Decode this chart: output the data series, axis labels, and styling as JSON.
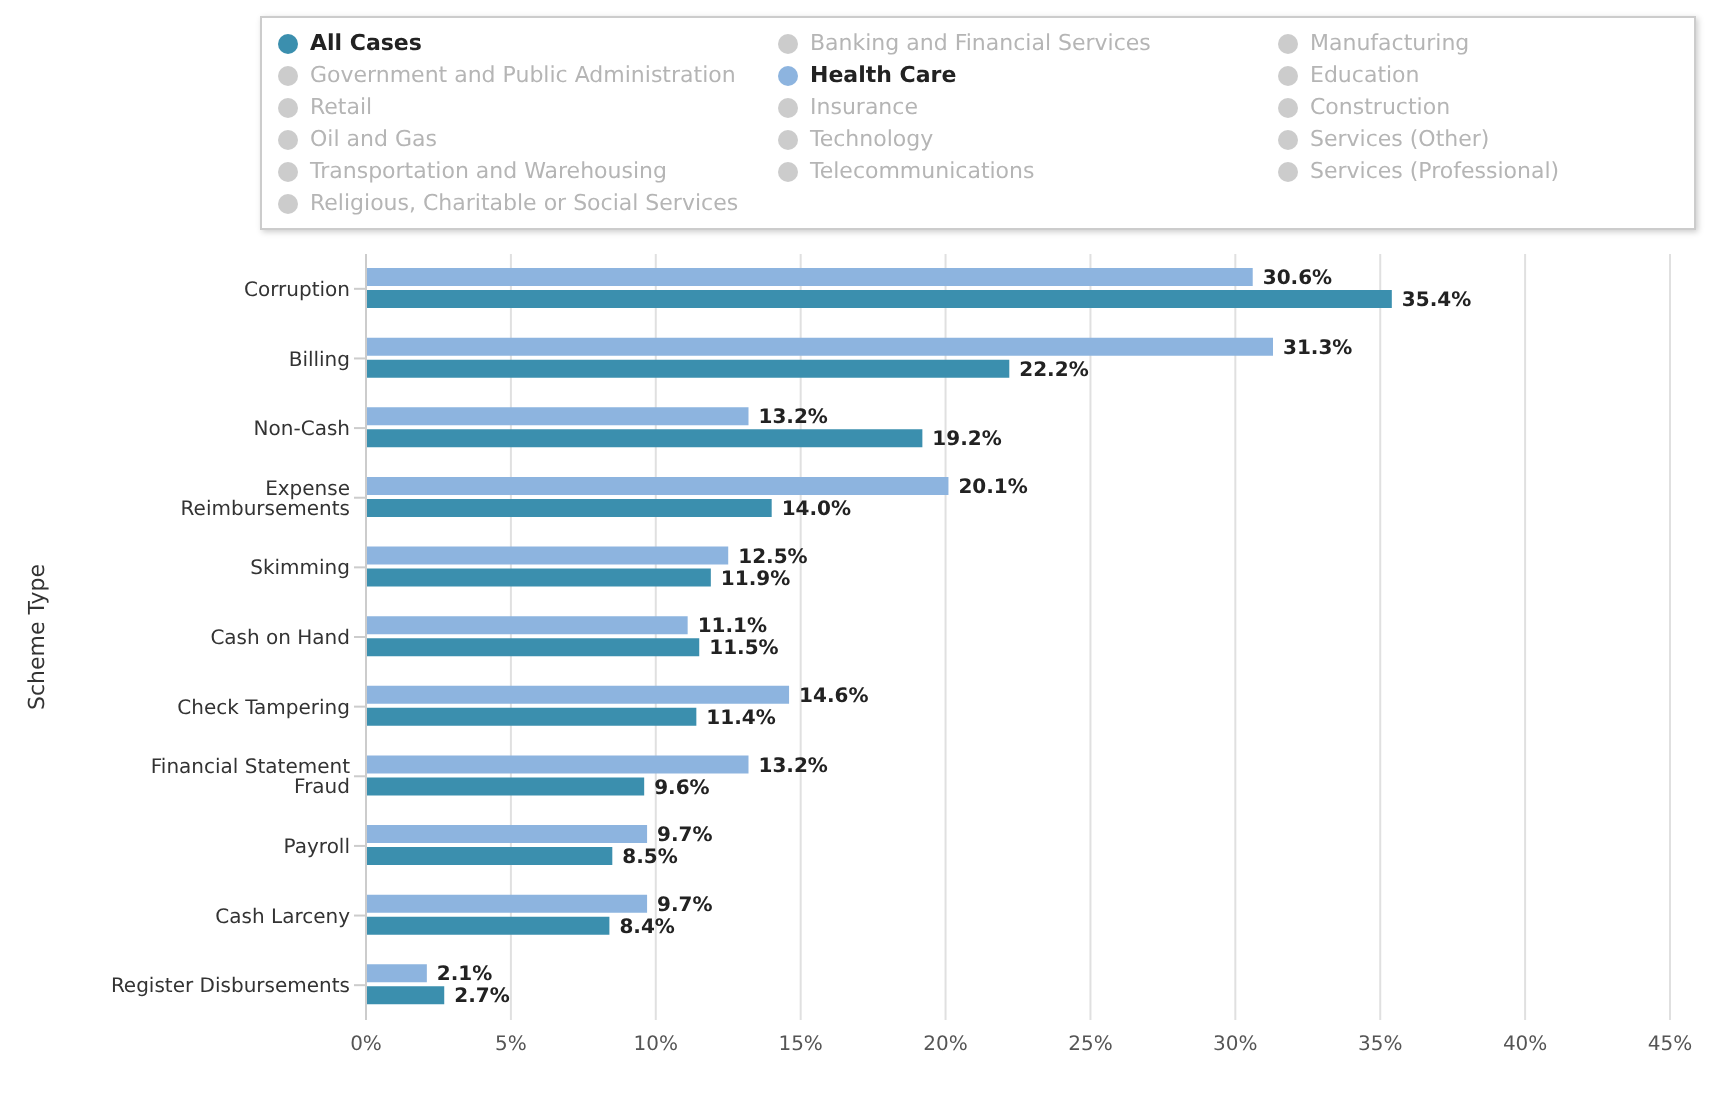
{
  "chart_data": {
    "type": "bar",
    "orientation": "horizontal",
    "ylabel": "Scheme Type",
    "legend": "top",
    "grid": "x",
    "categories": [
      "Corruption",
      "Billing",
      "Non-Cash",
      "Expense Reimbursements",
      "Skimming",
      "Cash on Hand",
      "Check Tampering",
      "Financial Statement Fraud",
      "Payroll",
      "Cash Larceny",
      "Register Disbursements"
    ],
    "xlim": [
      0,
      45
    ],
    "xticks": [
      {
        "value": 0,
        "label": "0%"
      },
      {
        "value": 5,
        "label": "5%"
      },
      {
        "value": 10,
        "label": "10%"
      },
      {
        "value": 15,
        "label": "15%"
      },
      {
        "value": 20,
        "label": "20%"
      },
      {
        "value": 25,
        "label": "25%"
      },
      {
        "value": 30,
        "label": "30%"
      },
      {
        "value": 35,
        "label": "35%"
      },
      {
        "value": 40,
        "label": "40%"
      },
      {
        "value": 45,
        "label": "45%"
      }
    ],
    "series": [
      {
        "name": "All Cases",
        "color": "#3b8fae",
        "values": [
          35.4,
          22.2,
          19.2,
          14.0,
          11.9,
          11.5,
          11.4,
          9.6,
          8.5,
          8.4,
          2.7
        ],
        "value_labels": [
          "35.4%",
          "22.2%",
          "19.2%",
          "14.0%",
          "11.9%",
          "11.5%",
          "11.4%",
          "9.6%",
          "8.5%",
          "8.4%",
          "2.7%"
        ]
      },
      {
        "name": "Banking and Financial Services",
        "color": "#cccccc",
        "values": [
          null,
          null,
          null,
          null,
          null,
          null,
          null,
          null,
          null,
          null,
          null
        ]
      },
      {
        "name": "Manufacturing",
        "color": "#cccccc",
        "values": [
          null,
          null,
          null,
          null,
          null,
          null,
          null,
          null,
          null,
          null,
          null
        ]
      },
      {
        "name": "Government and Public Administration",
        "color": "#cccccc",
        "values": [
          null,
          null,
          null,
          null,
          null,
          null,
          null,
          null,
          null,
          null,
          null
        ]
      },
      {
        "name": "Health Care",
        "color": "#8db4df",
        "values": [
          30.6,
          31.3,
          13.2,
          20.1,
          12.5,
          11.1,
          14.6,
          13.2,
          9.7,
          9.7,
          2.1
        ],
        "value_labels": [
          "30.6%",
          "31.3%",
          "13.2%",
          "20.1%",
          "12.5%",
          "11.1%",
          "14.6%",
          "13.2%",
          "9.7%",
          "9.7%",
          "2.1%"
        ]
      },
      {
        "name": "Education",
        "color": "#cccccc",
        "values": [
          null,
          null,
          null,
          null,
          null,
          null,
          null,
          null,
          null,
          null,
          null
        ]
      },
      {
        "name": "Retail",
        "color": "#cccccc",
        "values": [
          null,
          null,
          null,
          null,
          null,
          null,
          null,
          null,
          null,
          null,
          null
        ]
      },
      {
        "name": "Insurance",
        "color": "#cccccc",
        "values": [
          null,
          null,
          null,
          null,
          null,
          null,
          null,
          null,
          null,
          null,
          null
        ]
      },
      {
        "name": "Construction",
        "color": "#cccccc",
        "values": [
          null,
          null,
          null,
          null,
          null,
          null,
          null,
          null,
          null,
          null,
          null
        ]
      },
      {
        "name": "Oil and Gas",
        "color": "#cccccc",
        "values": [
          null,
          null,
          null,
          null,
          null,
          null,
          null,
          null,
          null,
          null,
          null
        ]
      },
      {
        "name": "Technology",
        "color": "#cccccc",
        "values": [
          null,
          null,
          null,
          null,
          null,
          null,
          null,
          null,
          null,
          null,
          null
        ]
      },
      {
        "name": "Services (Other)",
        "color": "#cccccc",
        "values": [
          null,
          null,
          null,
          null,
          null,
          null,
          null,
          null,
          null,
          null,
          null
        ]
      },
      {
        "name": "Transportation and Warehousing",
        "color": "#cccccc",
        "values": [
          null,
          null,
          null,
          null,
          null,
          null,
          null,
          null,
          null,
          null,
          null
        ]
      },
      {
        "name": "Telecommunications",
        "color": "#cccccc",
        "values": [
          null,
          null,
          null,
          null,
          null,
          null,
          null,
          null,
          null,
          null,
          null
        ]
      },
      {
        "name": "Services (Professional)",
        "color": "#cccccc",
        "values": [
          null,
          null,
          null,
          null,
          null,
          null,
          null,
          null,
          null,
          null,
          null
        ]
      },
      {
        "name": "Religious, Charitable or Social Services",
        "color": "#cccccc",
        "values": [
          null,
          null,
          null,
          null,
          null,
          null,
          null,
          null,
          null,
          null,
          null
        ]
      }
    ]
  }
}
